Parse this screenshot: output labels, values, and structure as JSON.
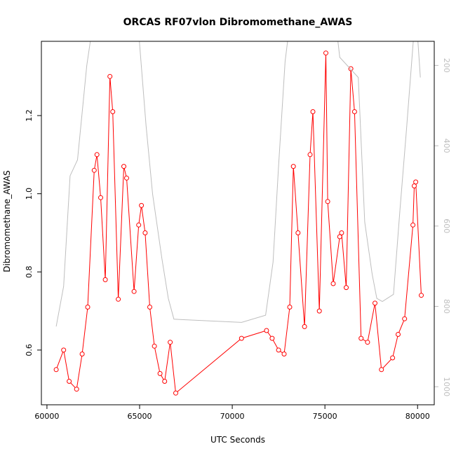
{
  "chart_data": {
    "type": "line",
    "title": "ORCAS RF07vlon Dibromomethane_AWAS",
    "xlabel": "UTC Seconds",
    "ylabel": "Dibromomethane_AWAS",
    "xlim": [
      59700,
      80900
    ],
    "ylim": [
      0.46,
      1.39
    ],
    "x_ticks": [
      60000,
      65000,
      70000,
      75000,
      80000
    ],
    "y_ticks": [
      0.6,
      0.8,
      1.0,
      1.2
    ],
    "y_tick_labels": [
      "0.6",
      "0.8",
      "1.0",
      "1.2"
    ],
    "y2_lim": [
      1045,
      140
    ],
    "y2_ticks": [
      200,
      400,
      600,
      800,
      1000
    ],
    "y2_tick_labels": [
      "200",
      "400",
      "600",
      "800",
      "1000"
    ],
    "grid": false,
    "legend": "none",
    "series": [
      {
        "color": "#ff0000",
        "marker": "open-circle",
        "axis": "left",
        "x": [
          60500,
          60900,
          61200,
          61600,
          61900,
          62200,
          62550,
          62700,
          62900,
          63150,
          63400,
          63550,
          63850,
          64150,
          64300,
          64700,
          64950,
          65100,
          65300,
          65550,
          65800,
          66100,
          66350,
          66650,
          66950,
          70500,
          71850,
          72150,
          72500,
          72800,
          73100,
          73300,
          73550,
          73900,
          74200,
          74350,
          74700,
          75050,
          75150,
          75450,
          75800,
          75900,
          76150,
          76400,
          76600,
          76950,
          77300,
          77700,
          78050,
          78650,
          78950,
          79300,
          79750,
          79820,
          79900,
          80200
        ],
        "y": [
          0.55,
          0.6,
          0.52,
          0.5,
          0.59,
          0.71,
          1.06,
          1.1,
          0.99,
          0.78,
          1.3,
          1.21,
          0.73,
          1.07,
          1.04,
          0.75,
          0.92,
          0.97,
          0.9,
          0.71,
          0.61,
          0.54,
          0.52,
          0.62,
          0.49,
          0.63,
          0.65,
          0.63,
          0.6,
          0.59,
          0.71,
          1.07,
          0.9,
          0.66,
          1.1,
          1.21,
          0.7,
          1.36,
          0.98,
          0.77,
          0.89,
          0.9,
          0.76,
          1.32,
          1.21,
          0.63,
          0.62,
          0.72,
          0.55,
          0.58,
          0.64,
          0.68,
          0.92,
          1.02,
          1.03,
          0.74
        ]
      },
      {
        "color": "#bebebe",
        "marker": "none",
        "axis": "right",
        "x": [
          60500,
          60900,
          61250,
          61650,
          62150,
          62500,
          64900,
          65350,
          65700,
          66200,
          66550,
          66850,
          70500,
          71800,
          72200,
          72500,
          72850,
          73200,
          75500,
          75800,
          76800,
          77150,
          77550,
          77800,
          78100,
          78700,
          79050,
          79400,
          79900,
          80150
        ],
        "y": [
          850,
          750,
          475,
          435,
          200,
          90,
          90,
          350,
          520,
          680,
          780,
          832,
          840,
          822,
          690,
          450,
          190,
          60,
          60,
          180,
          230,
          590,
          720,
          780,
          788,
          770,
          560,
          360,
          60,
          230
        ]
      }
    ]
  }
}
